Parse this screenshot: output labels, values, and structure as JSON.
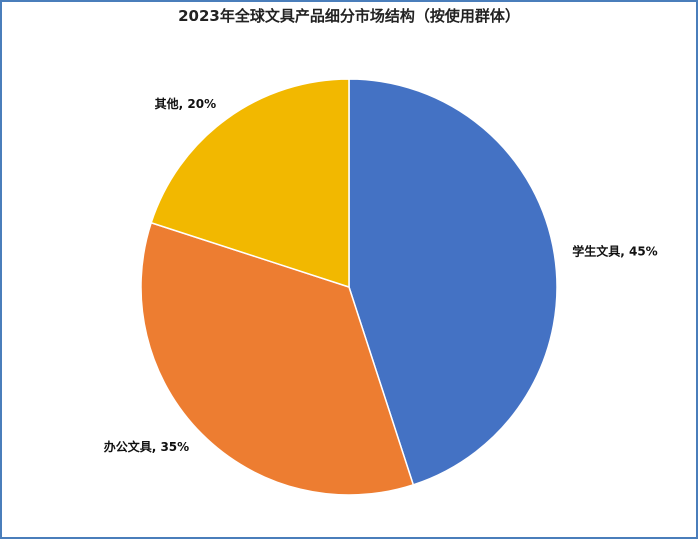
{
  "chart_data": {
    "type": "pie",
    "title": "2023年全球文具产品细分市场结构（按使用群体）",
    "categories": [
      "学生文具",
      "办公文具",
      "其他"
    ],
    "values": [
      45,
      35,
      20
    ],
    "value_labels": [
      "45%",
      "35%",
      "20%"
    ],
    "label_separator": ", ",
    "colors": [
      "#4472c4",
      "#ed7d31",
      "#f2b800"
    ]
  }
}
